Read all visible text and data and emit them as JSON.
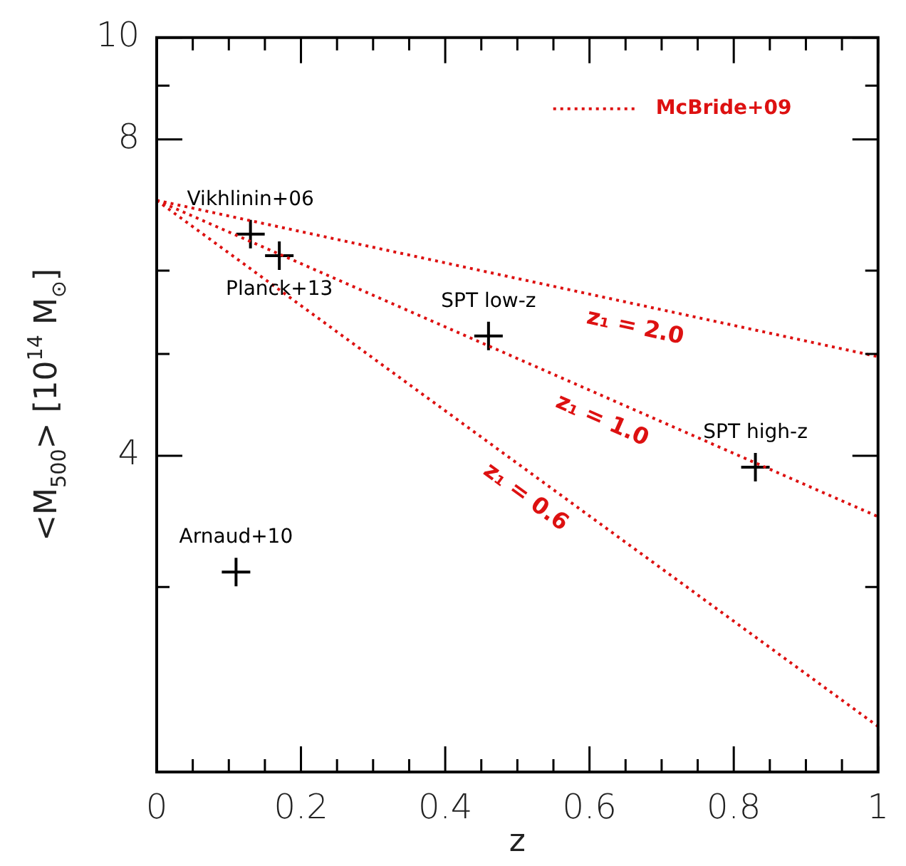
{
  "chart_data": {
    "type": "line",
    "xlabel": "z",
    "ylabel": "<M$_{500}$> [10$^{14}$ M$_{⊙}$]",
    "xlim": [
      0,
      1
    ],
    "xticks": [
      0,
      {
        "value": 0.05,
        "label": null
      },
      {
        "value": 0.1,
        "label": null
      },
      {
        "value": 0.15,
        "label": null
      },
      0.2,
      {
        "value": 0.25,
        "label": null
      },
      {
        "value": 0.3,
        "label": null
      },
      {
        "value": 0.35,
        "label": null
      },
      0.4,
      {
        "value": 0.45,
        "label": null
      },
      {
        "value": 0.5,
        "label": null
      },
      {
        "value": 0.55,
        "label": null
      },
      0.6,
      {
        "value": 0.65,
        "label": null
      },
      {
        "value": 0.7,
        "label": null
      },
      {
        "value": 0.75,
        "label": null
      },
      0.8,
      {
        "value": 0.85,
        "label": null
      },
      {
        "value": 0.9,
        "label": null
      },
      {
        "value": 0.95,
        "label": null
      },
      1
    ],
    "ylim": [
      2,
      10
    ],
    "yticks": [
      {
        "value": 3,
        "label": null
      },
      4,
      {
        "value": 5,
        "label": null
      },
      {
        "value": 6,
        "label": null
      },
      8,
      {
        "value": 9,
        "label": null
      },
      10
    ],
    "log": "y",
    "legend": "top right",
    "line_style": "dotted",
    "series": [
      {
        "name": "McBride+09",
        "color": "#dd1111",
        "x": [
          0,
          1
        ],
        "values": [
          7.0,
          4.97
        ]
      },
      {
        "color": "#dd1111",
        "x": [
          0,
          1
        ],
        "values": [
          7.0,
          3.5
        ]
      },
      {
        "color": "#dd1111",
        "x": [
          0,
          1
        ],
        "values": [
          7.0,
          2.21
        ]
      },
      {
        "type": "scatter",
        "marker": "cross",
        "color": "#000000",
        "x": [
          0.13,
          0.17,
          0.46,
          0.83,
          0.11
        ],
        "values": [
          6.5,
          6.2,
          5.2,
          3.9,
          3.1
        ]
      }
    ],
    "annotations": [
      {
        "text": "Vikhlinin+06",
        "x": 0.13,
        "y": 6.5
      },
      {
        "text": "Planck+13",
        "x": 0.17,
        "y": 6.2
      },
      {
        "text": "SPT low-z",
        "x": 0.46,
        "y": 5.2
      },
      {
        "text": "SPT high-z",
        "x": 0.83,
        "y": 3.9
      },
      {
        "text": "Arnaud+10",
        "x": 0.11,
        "y": 3.1
      },
      {
        "text": "z₁ = 2.0",
        "x": 0.67,
        "y": 5.56
      },
      {
        "text": "z₁ = 1.0",
        "x": 0.63,
        "y": 4.52
      },
      {
        "text": "z₁ = 0.6",
        "x": 0.53,
        "y": 3.8
      }
    ]
  }
}
